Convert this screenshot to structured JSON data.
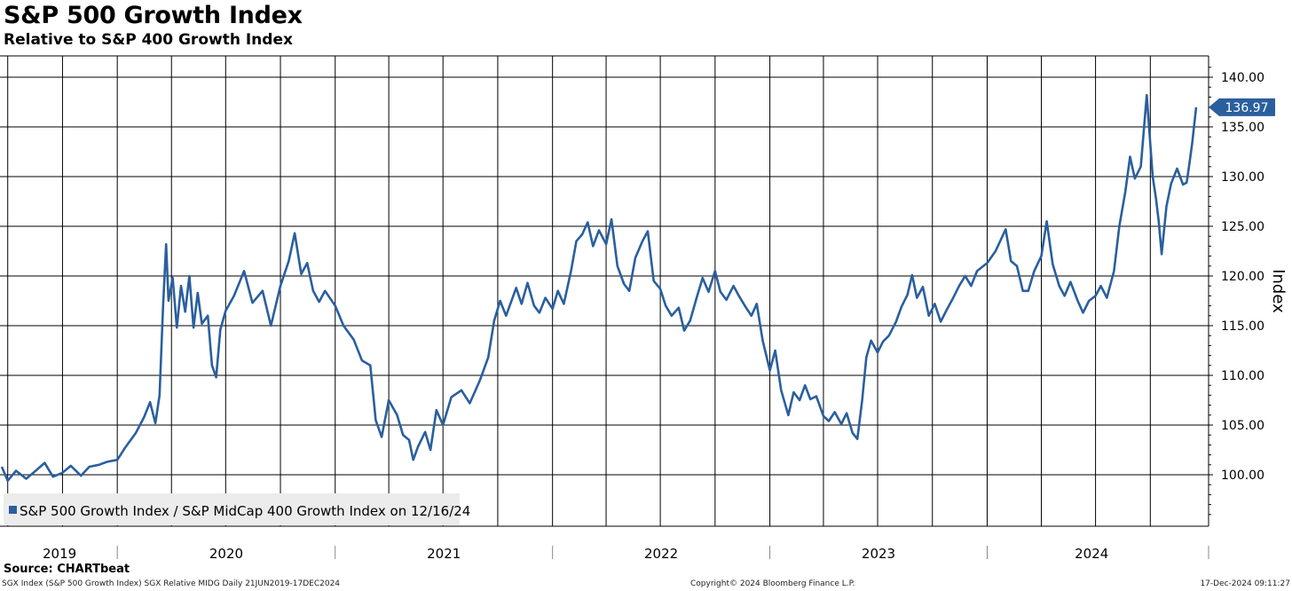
{
  "header": {
    "title": "S&P 500 Growth Index",
    "subtitle": "Relative to S&P 400 Growth Index"
  },
  "footer": {
    "source": "Source: CHARTbeat",
    "left": "SGX Index (S&P 500 Growth Index) SGX Relative MIDG  Daily 21JUN2019-17DEC2024",
    "middle": "Copyright© 2024 Bloomberg Finance L.P.",
    "right": "17-Dec-2024 09:11:27"
  },
  "colors": {
    "line": "#2a5f9e",
    "grid": "#000000",
    "legend_bg": "#ececec",
    "label_bg": "#2a5f9e"
  },
  "chart_data": {
    "type": "line",
    "ylabel": "Index",
    "xlabel": "",
    "ylim": [
      95,
      141
    ],
    "xlim": [
      "2019-06-21",
      "2024-12-17"
    ],
    "yticks": [
      100,
      105,
      110,
      115,
      120,
      125,
      130,
      135,
      140
    ],
    "ytick_labels": [
      "100.00",
      "105.00",
      "110.00",
      "115.00",
      "120.00",
      "125.00",
      "130.00",
      "135.00",
      "140.00"
    ],
    "year_labels": [
      "2019",
      "2020",
      "2021",
      "2022",
      "2023",
      "2024"
    ],
    "grid": true,
    "legend": {
      "position": "bottom-left",
      "label": "S&P 500 Growth Index / S&P MidCap 400 Growth Index on 12/16/24"
    },
    "last_value_label": "136.97",
    "series": [
      {
        "name": "S&P 500 Growth Index / S&P MidCap 400 Growth Index on 12/16/24",
        "points": [
          [
            "2019-06-21",
            100.8
          ],
          [
            "2019-07-01",
            99.4
          ],
          [
            "2019-07-15",
            100.4
          ],
          [
            "2019-08-01",
            99.6
          ],
          [
            "2019-08-15",
            100.3
          ],
          [
            "2019-09-01",
            101.2
          ],
          [
            "2019-09-15",
            99.8
          ],
          [
            "2019-10-01",
            100.2
          ],
          [
            "2019-10-15",
            100.9
          ],
          [
            "2019-11-01",
            99.9
          ],
          [
            "2019-11-15",
            100.8
          ],
          [
            "2019-12-01",
            101.0
          ],
          [
            "2019-12-15",
            101.3
          ],
          [
            "2020-01-01",
            101.5
          ],
          [
            "2020-01-15",
            102.8
          ],
          [
            "2020-02-01",
            104.2
          ],
          [
            "2020-02-15",
            105.8
          ],
          [
            "2020-02-25",
            107.3
          ],
          [
            "2020-03-05",
            105.2
          ],
          [
            "2020-03-12",
            108.0
          ],
          [
            "2020-03-18",
            117.0
          ],
          [
            "2020-03-23",
            123.2
          ],
          [
            "2020-03-27",
            117.5
          ],
          [
            "2020-04-03",
            119.8
          ],
          [
            "2020-04-10",
            114.8
          ],
          [
            "2020-04-17",
            119.0
          ],
          [
            "2020-04-24",
            116.4
          ],
          [
            "2020-05-01",
            120.0
          ],
          [
            "2020-05-08",
            114.8
          ],
          [
            "2020-05-15",
            118.3
          ],
          [
            "2020-05-22",
            115.2
          ],
          [
            "2020-06-01",
            116.0
          ],
          [
            "2020-06-08",
            111.0
          ],
          [
            "2020-06-15",
            109.8
          ],
          [
            "2020-06-22",
            114.6
          ],
          [
            "2020-07-01",
            116.5
          ],
          [
            "2020-07-15",
            118.0
          ],
          [
            "2020-08-01",
            120.5
          ],
          [
            "2020-08-15",
            117.3
          ],
          [
            "2020-09-01",
            118.5
          ],
          [
            "2020-09-15",
            115.0
          ],
          [
            "2020-10-01",
            119.0
          ],
          [
            "2020-10-15",
            121.5
          ],
          [
            "2020-10-25",
            124.3
          ],
          [
            "2020-11-05",
            120.2
          ],
          [
            "2020-11-15",
            121.3
          ],
          [
            "2020-11-25",
            118.5
          ],
          [
            "2020-12-05",
            117.4
          ],
          [
            "2020-12-15",
            118.5
          ],
          [
            "2021-01-01",
            117.0
          ],
          [
            "2021-01-15",
            115.0
          ],
          [
            "2021-02-01",
            113.6
          ],
          [
            "2021-02-15",
            111.5
          ],
          [
            "2021-03-01",
            111.0
          ],
          [
            "2021-03-10",
            105.5
          ],
          [
            "2021-03-20",
            103.8
          ],
          [
            "2021-04-01",
            107.5
          ],
          [
            "2021-04-15",
            106.0
          ],
          [
            "2021-04-25",
            104.0
          ],
          [
            "2021-05-05",
            103.5
          ],
          [
            "2021-05-12",
            101.5
          ],
          [
            "2021-05-20",
            102.8
          ],
          [
            "2021-06-01",
            104.3
          ],
          [
            "2021-06-10",
            102.5
          ],
          [
            "2021-06-20",
            106.5
          ],
          [
            "2021-07-01",
            105.0
          ],
          [
            "2021-07-15",
            107.8
          ],
          [
            "2021-08-01",
            108.5
          ],
          [
            "2021-08-15",
            107.2
          ],
          [
            "2021-09-01",
            109.5
          ],
          [
            "2021-09-15",
            111.8
          ],
          [
            "2021-09-25",
            115.5
          ],
          [
            "2021-10-05",
            117.5
          ],
          [
            "2021-10-15",
            116.0
          ],
          [
            "2021-11-01",
            118.8
          ],
          [
            "2021-11-10",
            117.2
          ],
          [
            "2021-11-20",
            119.3
          ],
          [
            "2021-12-01",
            117.0
          ],
          [
            "2021-12-10",
            116.3
          ],
          [
            "2021-12-20",
            117.8
          ],
          [
            "2022-01-01",
            116.7
          ],
          [
            "2022-01-10",
            118.5
          ],
          [
            "2022-01-20",
            117.2
          ],
          [
            "2022-02-01",
            120.5
          ],
          [
            "2022-02-10",
            123.5
          ],
          [
            "2022-02-20",
            124.2
          ],
          [
            "2022-03-01",
            125.4
          ],
          [
            "2022-03-10",
            123.0
          ],
          [
            "2022-03-20",
            124.6
          ],
          [
            "2022-04-01",
            123.2
          ],
          [
            "2022-04-10",
            125.7
          ],
          [
            "2022-04-20",
            121.0
          ],
          [
            "2022-05-01",
            119.2
          ],
          [
            "2022-05-10",
            118.5
          ],
          [
            "2022-05-20",
            121.8
          ],
          [
            "2022-06-01",
            123.5
          ],
          [
            "2022-06-10",
            124.5
          ],
          [
            "2022-06-20",
            119.5
          ],
          [
            "2022-07-01",
            118.7
          ],
          [
            "2022-07-10",
            117.0
          ],
          [
            "2022-07-20",
            116.0
          ],
          [
            "2022-08-01",
            116.8
          ],
          [
            "2022-08-10",
            114.5
          ],
          [
            "2022-08-20",
            115.5
          ],
          [
            "2022-09-01",
            118.0
          ],
          [
            "2022-09-10",
            119.8
          ],
          [
            "2022-09-20",
            118.4
          ],
          [
            "2022-10-01",
            120.5
          ],
          [
            "2022-10-10",
            118.4
          ],
          [
            "2022-10-20",
            117.6
          ],
          [
            "2022-11-01",
            119.0
          ],
          [
            "2022-11-10",
            118.0
          ],
          [
            "2022-11-20",
            117.0
          ],
          [
            "2022-12-01",
            116.0
          ],
          [
            "2022-12-10",
            117.2
          ],
          [
            "2022-12-20",
            113.5
          ],
          [
            "2023-01-01",
            110.5
          ],
          [
            "2023-01-10",
            112.5
          ],
          [
            "2023-01-20",
            108.5
          ],
          [
            "2023-02-01",
            106.0
          ],
          [
            "2023-02-10",
            108.3
          ],
          [
            "2023-02-20",
            107.5
          ],
          [
            "2023-03-01",
            109.0
          ],
          [
            "2023-03-10",
            107.6
          ],
          [
            "2023-03-20",
            107.9
          ],
          [
            "2023-04-01",
            105.9
          ],
          [
            "2023-04-10",
            105.4
          ],
          [
            "2023-04-20",
            106.3
          ],
          [
            "2023-05-01",
            105.1
          ],
          [
            "2023-05-10",
            106.2
          ],
          [
            "2023-05-20",
            104.2
          ],
          [
            "2023-05-28",
            103.6
          ],
          [
            "2023-06-05",
            107.5
          ],
          [
            "2023-06-12",
            111.8
          ],
          [
            "2023-06-20",
            113.5
          ],
          [
            "2023-07-01",
            112.3
          ],
          [
            "2023-07-10",
            113.4
          ],
          [
            "2023-07-20",
            114.0
          ],
          [
            "2023-08-01",
            115.4
          ],
          [
            "2023-08-10",
            116.9
          ],
          [
            "2023-08-20",
            118.1
          ],
          [
            "2023-08-28",
            120.1
          ],
          [
            "2023-09-05",
            117.8
          ],
          [
            "2023-09-15",
            118.9
          ],
          [
            "2023-09-25",
            116.0
          ],
          [
            "2023-10-05",
            117.2
          ],
          [
            "2023-10-15",
            115.4
          ],
          [
            "2023-10-25",
            116.6
          ],
          [
            "2023-11-05",
            117.8
          ],
          [
            "2023-11-15",
            119.0
          ],
          [
            "2023-11-25",
            120.0
          ],
          [
            "2023-12-05",
            119.0
          ],
          [
            "2023-12-15",
            120.5
          ],
          [
            "2024-01-01",
            121.3
          ],
          [
            "2024-01-15",
            122.5
          ],
          [
            "2024-02-01",
            124.7
          ],
          [
            "2024-02-10",
            121.5
          ],
          [
            "2024-02-20",
            121.0
          ],
          [
            "2024-03-01",
            118.5
          ],
          [
            "2024-03-10",
            118.5
          ],
          [
            "2024-03-20",
            120.5
          ],
          [
            "2024-04-01",
            122.0
          ],
          [
            "2024-04-10",
            125.5
          ],
          [
            "2024-04-20",
            121.2
          ],
          [
            "2024-05-01",
            119.0
          ],
          [
            "2024-05-10",
            118.0
          ],
          [
            "2024-05-20",
            119.4
          ],
          [
            "2024-06-01",
            117.5
          ],
          [
            "2024-06-10",
            116.3
          ],
          [
            "2024-06-20",
            117.5
          ],
          [
            "2024-07-01",
            118.0
          ],
          [
            "2024-07-10",
            119.0
          ],
          [
            "2024-07-20",
            117.8
          ],
          [
            "2024-08-01",
            120.5
          ],
          [
            "2024-08-10",
            125.0
          ],
          [
            "2024-08-20",
            128.5
          ],
          [
            "2024-08-28",
            132.0
          ],
          [
            "2024-09-05",
            129.8
          ],
          [
            "2024-09-15",
            131.0
          ],
          [
            "2024-09-25",
            138.2
          ],
          [
            "2024-10-05",
            130.0
          ],
          [
            "2024-10-10",
            128.0
          ],
          [
            "2024-10-15",
            125.6
          ],
          [
            "2024-10-20",
            122.2
          ],
          [
            "2024-10-28",
            127.0
          ],
          [
            "2024-11-05",
            129.3
          ],
          [
            "2024-11-15",
            130.8
          ],
          [
            "2024-11-25",
            129.2
          ],
          [
            "2024-12-01",
            129.4
          ],
          [
            "2024-12-05",
            131.0
          ],
          [
            "2024-12-10",
            133.2
          ],
          [
            "2024-12-17",
            136.97
          ]
        ]
      }
    ]
  }
}
